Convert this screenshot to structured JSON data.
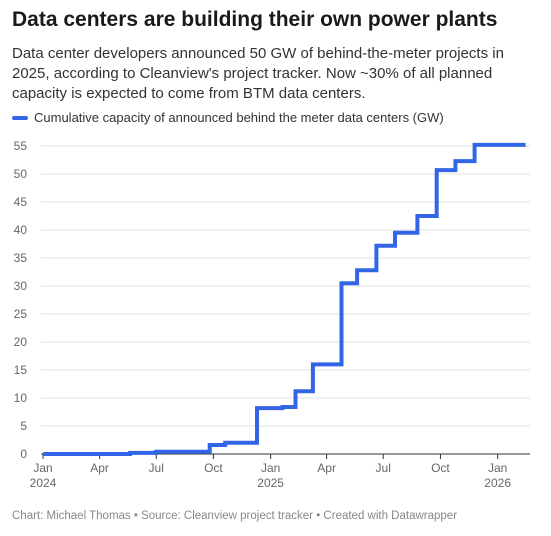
{
  "header": {
    "title": "Data centers are building their own power plants",
    "subtitle": "Data center developers announced 50 GW of behind-the-meter projects in 2025, according to Cleanview's project tracker. Now ~30% of all planned capacity is expected to come from BTM data centers."
  },
  "footer": {
    "text": "Chart: Michael Thomas • Source: Cleanview project tracker • Created with Datawrapper"
  },
  "chart_data": {
    "type": "line",
    "step": true,
    "legend_position": "top-left",
    "grid": true,
    "xlim": [
      "2024-01-01",
      "2026-02-22"
    ],
    "ylim": [
      0,
      55
    ],
    "y_ticks": [
      0,
      5,
      10,
      15,
      20,
      25,
      30,
      35,
      40,
      45,
      50,
      55
    ],
    "x_ticks": [
      {
        "date": "2024-01-01",
        "label": "Jan",
        "sublabel": "2024"
      },
      {
        "date": "2024-04-01",
        "label": "Apr",
        "sublabel": ""
      },
      {
        "date": "2024-07-01",
        "label": "Jul",
        "sublabel": ""
      },
      {
        "date": "2024-10-01",
        "label": "Oct",
        "sublabel": ""
      },
      {
        "date": "2025-01-01",
        "label": "Jan",
        "sublabel": "2025"
      },
      {
        "date": "2025-04-01",
        "label": "Apr",
        "sublabel": ""
      },
      {
        "date": "2025-07-01",
        "label": "Jul",
        "sublabel": ""
      },
      {
        "date": "2025-10-01",
        "label": "Oct",
        "sublabel": ""
      },
      {
        "date": "2026-01-01",
        "label": "Jan",
        "sublabel": "2026"
      }
    ],
    "series": [
      {
        "name": "Cumulative capacity of announced behind the meter data centers (GW)",
        "color": "#3366e6",
        "points": [
          {
            "x": "2024-01-01",
            "y": 0
          },
          {
            "x": "2024-05-20",
            "y": 0.2
          },
          {
            "x": "2024-07-01",
            "y": 0.4
          },
          {
            "x": "2024-09-25",
            "y": 1.6
          },
          {
            "x": "2024-10-20",
            "y": 2.0
          },
          {
            "x": "2024-12-10",
            "y": 8.2
          },
          {
            "x": "2025-01-20",
            "y": 8.4
          },
          {
            "x": "2025-02-10",
            "y": 11.2
          },
          {
            "x": "2025-03-10",
            "y": 16.0
          },
          {
            "x": "2025-04-25",
            "y": 30.5
          },
          {
            "x": "2025-05-20",
            "y": 32.8
          },
          {
            "x": "2025-06-20",
            "y": 37.2
          },
          {
            "x": "2025-07-20",
            "y": 39.5
          },
          {
            "x": "2025-08-25",
            "y": 42.5
          },
          {
            "x": "2025-09-25",
            "y": 50.7
          },
          {
            "x": "2025-10-25",
            "y": 52.3
          },
          {
            "x": "2025-11-25",
            "y": 55.2
          },
          {
            "x": "2026-02-15",
            "y": 55.2
          }
        ]
      }
    ]
  }
}
